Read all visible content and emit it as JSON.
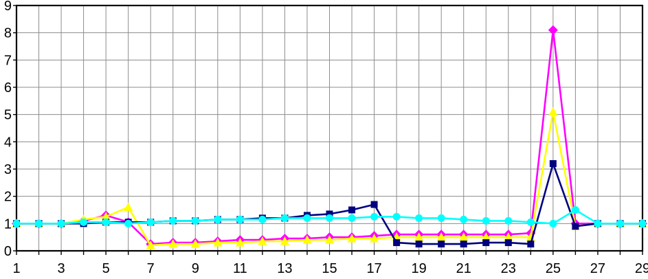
{
  "chart": {
    "background_color": "#FFFFFF",
    "grid_color": "#8C8C8C",
    "border_color": "#000000",
    "text_color": "#000000"
  },
  "chart_data": {
    "type": "line",
    "title": "",
    "xlabel": "",
    "ylabel": "",
    "grid": true,
    "legend": "none",
    "ylim": [
      0,
      9
    ],
    "y_ticks": [
      0,
      1,
      2,
      3,
      4,
      5,
      6,
      7,
      8,
      9
    ],
    "x": [
      1,
      2,
      3,
      4,
      5,
      6,
      7,
      8,
      9,
      10,
      11,
      12,
      13,
      14,
      15,
      16,
      17,
      18,
      19,
      20,
      21,
      22,
      23,
      24,
      25,
      26,
      27,
      28,
      29
    ],
    "x_labeled_ticks": [
      1,
      3,
      5,
      7,
      9,
      11,
      13,
      15,
      17,
      19,
      21,
      23,
      25,
      27,
      29
    ],
    "series": [
      {
        "name": "magenta-diamond-series",
        "color": "#FF00FF",
        "marker": "diamond",
        "values": [
          1,
          1,
          1,
          1.1,
          1.3,
          1.05,
          0.25,
          0.3,
          0.3,
          0.35,
          0.4,
          0.4,
          0.45,
          0.45,
          0.5,
          0.5,
          0.55,
          0.6,
          0.6,
          0.6,
          0.6,
          0.6,
          0.6,
          0.65,
          8.1,
          1,
          1,
          1,
          1
        ]
      },
      {
        "name": "yellow-triangle-series",
        "color": "#FFFF00",
        "marker": "triangle-up",
        "values": [
          1,
          1,
          1,
          1.15,
          1.25,
          1.6,
          0.2,
          0.25,
          0.25,
          0.3,
          0.3,
          0.35,
          0.35,
          0.4,
          0.4,
          0.45,
          0.45,
          0.5,
          0.5,
          0.5,
          0.5,
          0.5,
          0.5,
          0.5,
          5.1,
          0.9,
          1,
          1,
          1
        ]
      },
      {
        "name": "navy-square-series",
        "color": "#000080",
        "marker": "square",
        "values": [
          1,
          1,
          1,
          1,
          1.05,
          1.05,
          1.05,
          1.1,
          1.1,
          1.15,
          1.15,
          1.2,
          1.2,
          1.3,
          1.35,
          1.5,
          1.7,
          0.3,
          0.25,
          0.25,
          0.25,
          0.3,
          0.3,
          0.25,
          3.2,
          0.9,
          1,
          1,
          1
        ]
      },
      {
        "name": "cyan-circle-series",
        "color": "#00FFFF",
        "marker": "circle",
        "values": [
          1,
          1,
          1,
          1.05,
          1.05,
          1,
          1.05,
          1.1,
          1.1,
          1.15,
          1.15,
          1.15,
          1.2,
          1.2,
          1.2,
          1.2,
          1.25,
          1.25,
          1.2,
          1.2,
          1.15,
          1.1,
          1.1,
          1.05,
          1,
          1.5,
          1,
          1,
          1
        ]
      }
    ]
  }
}
